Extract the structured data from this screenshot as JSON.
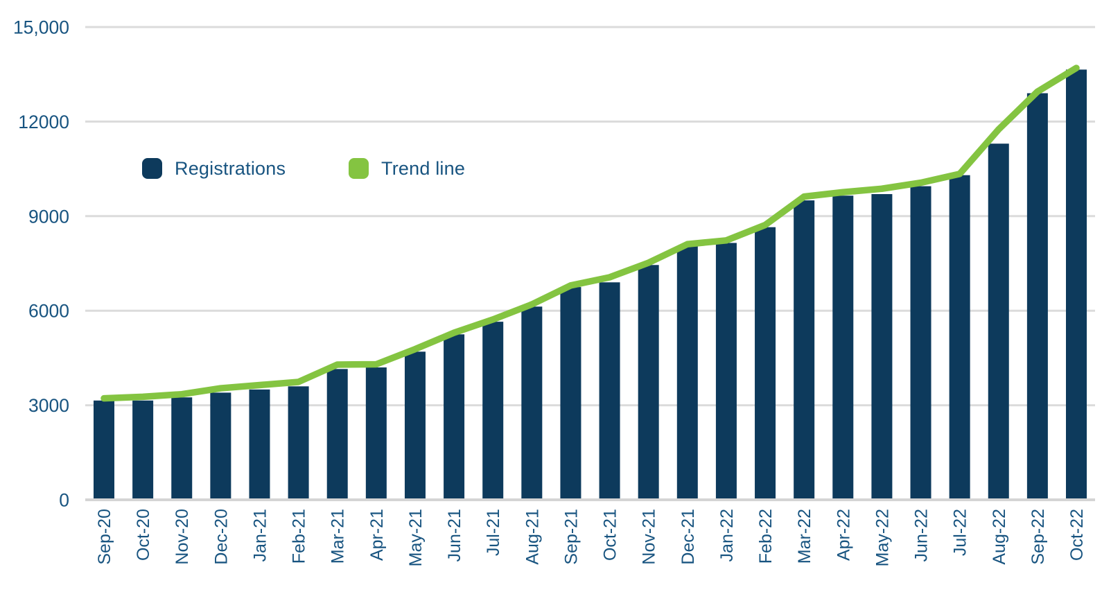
{
  "colors": {
    "bar": "#0D3A5C",
    "trend": "#84C441",
    "grid": "#DBDBDB",
    "axis_line": "#D4D4D4",
    "text": "#185480",
    "background": "#FFFFFF"
  },
  "legend": {
    "items": [
      {
        "label": "Registrations",
        "color": "#0D3A5C",
        "marker": "rounded-square"
      },
      {
        "label": "Trend line",
        "color": "#84C441",
        "marker": "rounded-square"
      }
    ]
  },
  "chart_data": {
    "type": "bar",
    "title": "",
    "xlabel": "",
    "ylabel": "",
    "grid": true,
    "legend_position": "top-left-inset",
    "ylim": [
      0,
      15000
    ],
    "yticks": [
      {
        "value": 0,
        "label": "0"
      },
      {
        "value": 3000,
        "label": "3000"
      },
      {
        "value": 6000,
        "label": "6000"
      },
      {
        "value": 9000,
        "label": "9000"
      },
      {
        "value": 12000,
        "label": "12000"
      },
      {
        "value": 15000,
        "label": "15,000"
      }
    ],
    "categories": [
      "Sep-20",
      "Oct-20",
      "Nov-20",
      "Dec-20",
      "Jan-21",
      "Feb-21",
      "Mar-21",
      "Apr-21",
      "May-21",
      "Jun-21",
      "Jul-21",
      "Aug-21",
      "Sep-21",
      "Oct-21",
      "Nov-21",
      "Dec-21",
      "Jan-22",
      "Feb-22",
      "Mar-22",
      "Apr-22",
      "May-22",
      "Jun-22",
      "Jul-22",
      "Aug-22",
      "Sep-22",
      "Oct-22"
    ],
    "series": [
      {
        "name": "Registrations",
        "type": "bar",
        "color": "#0D3A5C",
        "values": [
          3150,
          3150,
          3250,
          3400,
          3500,
          3600,
          4150,
          4200,
          4700,
          5250,
          5650,
          6130,
          6750,
          6900,
          7450,
          8050,
          8150,
          8650,
          9500,
          9650,
          9700,
          9950,
          10300,
          11300,
          12900,
          13650
        ]
      },
      {
        "name": "Trend line",
        "type": "line",
        "color": "#84C441",
        "values": [
          3220,
          3270,
          3350,
          3540,
          3640,
          3740,
          4290,
          4300,
          4780,
          5300,
          5720,
          6200,
          6800,
          7060,
          7520,
          8110,
          8230,
          8720,
          9620,
          9760,
          9870,
          10060,
          10340,
          11750,
          12950,
          13700
        ]
      }
    ]
  }
}
